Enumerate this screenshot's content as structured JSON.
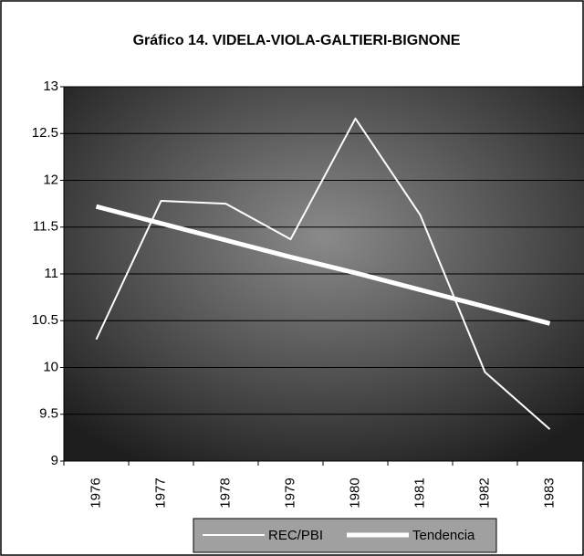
{
  "chart_data": {
    "type": "line",
    "title": "Gráfico 14. VIDELA-VIOLA-GALTIERI-BIGNONE",
    "categories": [
      "1976",
      "1977",
      "1978",
      "1979",
      "1980",
      "1981",
      "1982",
      "1983"
    ],
    "series": [
      {
        "name": "REC/PBI",
        "color": "#ffffff",
        "values": [
          10.3,
          11.78,
          11.75,
          11.37,
          12.66,
          11.63,
          9.95,
          9.34
        ]
      },
      {
        "name": "Tendencia",
        "color": "#ffffff",
        "values": [
          11.72,
          11.54,
          11.36,
          11.18,
          11.01,
          10.83,
          10.65,
          10.47
        ]
      }
    ],
    "ylim": [
      9,
      13
    ],
    "yticks": [
      9,
      9.5,
      10,
      10.5,
      11,
      11.5,
      12,
      12.5,
      13
    ],
    "grid": true
  }
}
